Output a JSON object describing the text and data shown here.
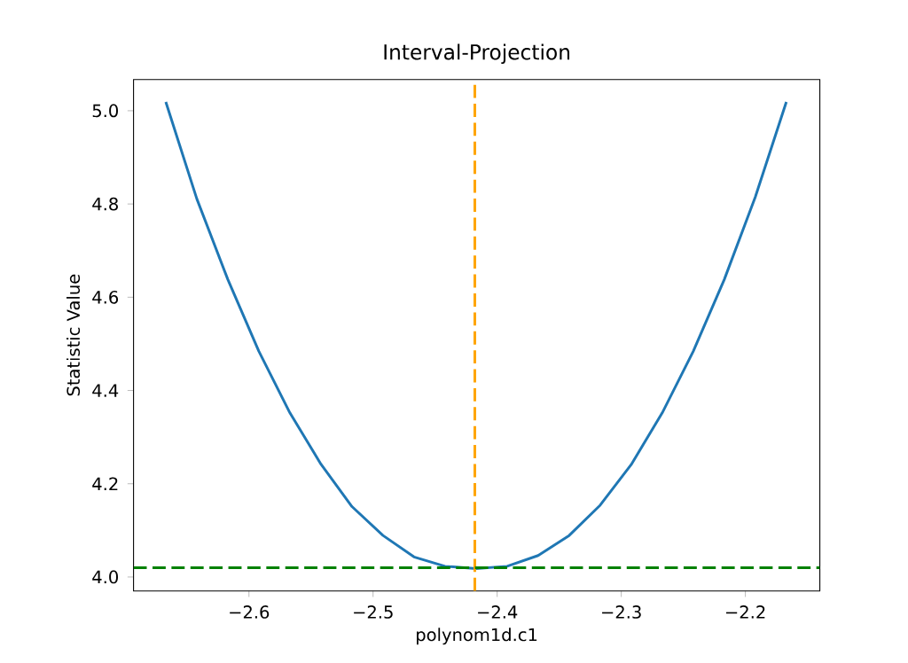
{
  "chart_data": {
    "type": "line",
    "title": "Interval-Projection",
    "xlabel": "polynom1d.c1",
    "ylabel": "Statistic Value",
    "x": [
      -2.667,
      -2.642,
      -2.617,
      -2.592,
      -2.567,
      -2.542,
      -2.517,
      -2.492,
      -2.467,
      -2.442,
      -2.417,
      -2.392,
      -2.367,
      -2.342,
      -2.317,
      -2.292,
      -2.267,
      -2.242,
      -2.217,
      -2.192,
      -2.167
    ],
    "series": [
      {
        "color": "#1f77b4",
        "values": [
          5.019,
          4.811,
          4.638,
          4.484,
          4.352,
          4.242,
          4.151,
          4.089,
          4.043,
          4.023,
          4.018,
          4.023,
          4.046,
          4.089,
          4.154,
          4.241,
          4.352,
          4.484,
          4.638,
          4.815,
          5.019
        ]
      }
    ],
    "xlim": [
      -2.693,
      -2.14
    ],
    "ylim": [
      3.97,
      5.067
    ],
    "xticks": [
      {
        "value": -2.6,
        "label": "−2.6"
      },
      {
        "value": -2.5,
        "label": "−2.5"
      },
      {
        "value": -2.4,
        "label": "−2.4"
      },
      {
        "value": -2.3,
        "label": "−2.3"
      },
      {
        "value": -2.2,
        "label": "−2.2"
      }
    ],
    "yticks": [
      {
        "value": 4.0,
        "label": "4.0"
      },
      {
        "value": 4.2,
        "label": "4.2"
      },
      {
        "value": 4.4,
        "label": "4.4"
      },
      {
        "value": 4.6,
        "label": "4.6"
      },
      {
        "value": 4.8,
        "label": "4.8"
      },
      {
        "value": 5.0,
        "label": "5.0"
      }
    ],
    "ref_lines": [
      {
        "axis": "x",
        "value": -2.418,
        "color": "#ffa500",
        "line_style": "dashed"
      },
      {
        "axis": "y",
        "value": 4.02,
        "color": "#008000",
        "line_style": "dashed"
      }
    ],
    "grid": false,
    "marker": "none",
    "line_style": "solid"
  }
}
